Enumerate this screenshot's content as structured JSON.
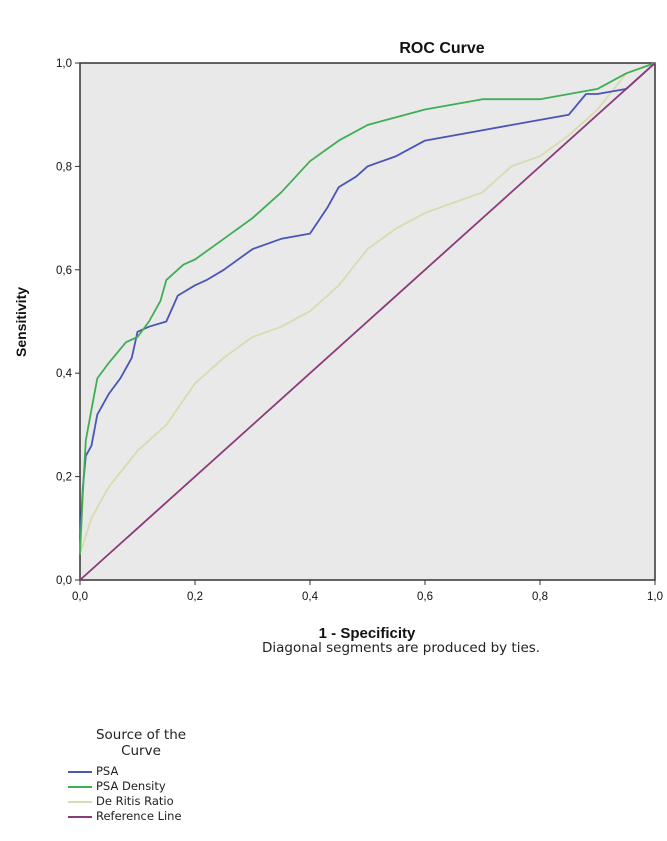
{
  "chart_data": {
    "type": "line",
    "title": "ROC Curve",
    "xlabel": "1 - Specificity",
    "ylabel": "Sensitivity",
    "xlim": [
      0,
      1
    ],
    "ylim": [
      0,
      1
    ],
    "xticks": [
      "0,0",
      "0,2",
      "0,4",
      "0,6",
      "0,8",
      "1,0"
    ],
    "yticks": [
      "0,0",
      "0,2",
      "0,4",
      "0,6",
      "0,8",
      "1,0"
    ],
    "grid": false,
    "note": "Diagonal segments are produced by ties.",
    "legend": {
      "title": [
        "Source of the",
        "Curve"
      ],
      "placement": "bottom-left"
    },
    "series": [
      {
        "name": "PSA",
        "color": "#4a55b8",
        "x": [
          0,
          0.005,
          0.01,
          0.02,
          0.03,
          0.05,
          0.07,
          0.09,
          0.1,
          0.12,
          0.15,
          0.17,
          0.2,
          0.22,
          0.25,
          0.3,
          0.35,
          0.4,
          0.43,
          0.45,
          0.48,
          0.5,
          0.55,
          0.6,
          0.7,
          0.8,
          0.85,
          0.88,
          0.9,
          0.95,
          1
        ],
        "y": [
          0.08,
          0.18,
          0.24,
          0.26,
          0.32,
          0.36,
          0.39,
          0.43,
          0.48,
          0.49,
          0.5,
          0.55,
          0.57,
          0.58,
          0.6,
          0.64,
          0.66,
          0.67,
          0.72,
          0.76,
          0.78,
          0.8,
          0.82,
          0.85,
          0.87,
          0.89,
          0.9,
          0.94,
          0.94,
          0.95,
          1
        ]
      },
      {
        "name": "PSA Density",
        "color": "#3fae55",
        "x": [
          0,
          0.005,
          0.01,
          0.02,
          0.03,
          0.05,
          0.08,
          0.1,
          0.12,
          0.14,
          0.15,
          0.18,
          0.2,
          0.25,
          0.3,
          0.35,
          0.4,
          0.45,
          0.5,
          0.6,
          0.7,
          0.8,
          0.9,
          0.95,
          1
        ],
        "y": [
          0.05,
          0.17,
          0.27,
          0.33,
          0.39,
          0.42,
          0.46,
          0.47,
          0.5,
          0.54,
          0.58,
          0.61,
          0.62,
          0.66,
          0.7,
          0.75,
          0.81,
          0.85,
          0.88,
          0.91,
          0.93,
          0.93,
          0.95,
          0.98,
          1
        ]
      },
      {
        "name": "De Ritis Ratio",
        "color": "#d8dcae",
        "x": [
          0,
          0.02,
          0.05,
          0.1,
          0.15,
          0.2,
          0.25,
          0.3,
          0.35,
          0.4,
          0.45,
          0.5,
          0.55,
          0.6,
          0.65,
          0.7,
          0.75,
          0.8,
          0.85,
          0.9,
          0.95,
          1
        ],
        "y": [
          0.05,
          0.12,
          0.18,
          0.25,
          0.3,
          0.38,
          0.43,
          0.47,
          0.49,
          0.52,
          0.57,
          0.64,
          0.68,
          0.71,
          0.73,
          0.75,
          0.8,
          0.82,
          0.86,
          0.91,
          0.98,
          1
        ]
      },
      {
        "name": "Reference Line",
        "color": "#8b3a7a",
        "x": [
          0,
          1
        ],
        "y": [
          0,
          1
        ]
      }
    ]
  }
}
